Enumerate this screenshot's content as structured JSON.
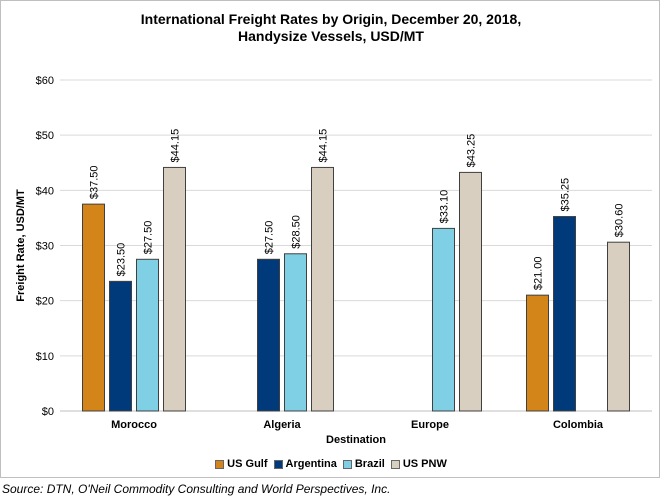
{
  "chart_data": {
    "type": "bar",
    "title_line1": "International Freight Rates by Origin, December 20, 2018,",
    "title_line2": "Handysize Vessels, USD/MT",
    "xlabel": "Destination",
    "ylabel": "Freight Rate, USD/MT",
    "ylim": [
      0,
      60
    ],
    "yticks": [
      "$0",
      "$10",
      "$20",
      "$30",
      "$40",
      "$50",
      "$60"
    ],
    "categories": [
      "Morocco",
      "Algeria",
      "Europe",
      "Colombia"
    ],
    "series": [
      {
        "name": "US Gulf",
        "color": "#d4851a",
        "values": [
          37.5,
          null,
          null,
          21.0
        ],
        "labels": [
          "$37.50",
          "",
          "",
          "$21.00"
        ]
      },
      {
        "name": "Argentina",
        "color": "#003a7a",
        "values": [
          23.5,
          27.5,
          null,
          35.25
        ],
        "labels": [
          "$23.50",
          "$27.50",
          "",
          "$35.25"
        ]
      },
      {
        "name": "Brazil",
        "color": "#7fd0e4",
        "values": [
          27.5,
          28.5,
          33.1,
          null
        ],
        "labels": [
          "$27.50",
          "$28.50",
          "$33.10",
          ""
        ]
      },
      {
        "name": "US PNW",
        "color": "#d9cfc0",
        "values": [
          44.15,
          44.15,
          43.25,
          30.6
        ],
        "labels": [
          "$44.15",
          "$44.15",
          "$43.25",
          "$30.60"
        ]
      }
    ],
    "gridlines": true,
    "legend_position": "bottom"
  },
  "source": "Source: DTN, O'Neil Commodity Consulting and World Perspectives, Inc."
}
